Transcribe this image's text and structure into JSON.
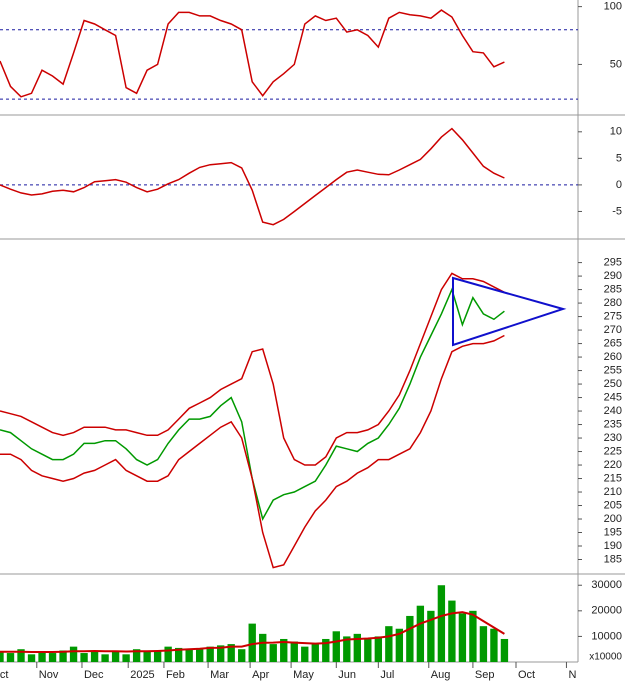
{
  "chart_data": [
    {
      "type": "line",
      "xlim": [
        0,
        55
      ],
      "ylim": [
        8,
        104
      ],
      "yticks": [
        50,
        100
      ],
      "reference_lines": [
        20,
        80
      ],
      "reference_color": "#1a1aa0",
      "x": [
        0,
        1,
        2,
        3,
        4,
        5,
        6,
        7,
        8,
        9,
        10,
        11,
        12,
        13,
        14,
        15,
        16,
        17,
        18,
        19,
        20,
        21,
        22,
        23,
        24,
        25,
        26,
        27,
        28,
        29,
        30,
        31,
        32,
        33,
        34,
        35,
        36,
        37,
        38,
        39,
        40,
        41,
        42,
        43,
        44,
        45,
        46,
        47,
        48
      ],
      "series": [
        {
          "color": "#cc0000",
          "values": [
            53,
            31,
            22,
            25,
            45,
            40,
            33,
            60,
            88,
            85,
            80,
            75,
            30,
            25,
            45,
            50,
            85,
            95,
            95,
            92,
            92,
            88,
            85,
            80,
            35,
            23,
            35,
            42,
            50,
            85,
            92,
            88,
            90,
            78,
            80,
            75,
            65,
            90,
            95,
            93,
            92,
            90,
            97,
            91,
            75,
            61,
            60,
            48,
            52
          ]
        }
      ]
    },
    {
      "type": "line",
      "xlim": [
        0,
        55
      ],
      "ylim": [
        -10,
        12.6
      ],
      "yticks": [
        -5,
        0,
        5,
        10
      ],
      "reference_lines": [
        0
      ],
      "reference_color": "#1a1aa0",
      "x": [
        0,
        1,
        2,
        3,
        4,
        5,
        6,
        7,
        8,
        9,
        10,
        11,
        12,
        13,
        14,
        15,
        16,
        17,
        18,
        19,
        20,
        21,
        22,
        23,
        24,
        25,
        26,
        27,
        28,
        29,
        30,
        31,
        32,
        33,
        34,
        35,
        36,
        37,
        38,
        39,
        40,
        41,
        42,
        43,
        44,
        45,
        46,
        47,
        48
      ],
      "series": [
        {
          "color": "#cc0000",
          "values": [
            0,
            -0.8,
            -1.5,
            -1.9,
            -1.7,
            -1.2,
            -1,
            -1.3,
            -0.5,
            0.6,
            0.8,
            1,
            0.5,
            -0.5,
            -1.3,
            -0.8,
            0.2,
            1,
            2.2,
            3.3,
            3.8,
            4,
            4.2,
            3.2,
            -1,
            -7,
            -7.5,
            -6.5,
            -5,
            -3.5,
            -2,
            -0.5,
            1,
            2.4,
            2.8,
            2.4,
            2,
            1.9,
            2.8,
            3.8,
            4.8,
            6.8,
            9,
            10.6,
            8.5,
            6,
            3.5,
            2.2,
            1.3
          ]
        }
      ]
    },
    {
      "type": "line",
      "xlim": [
        0,
        55
      ],
      "ylim": [
        180,
        303
      ],
      "yticks": [
        185,
        190,
        195,
        200,
        205,
        210,
        215,
        220,
        225,
        230,
        235,
        240,
        245,
        250,
        255,
        260,
        265,
        270,
        275,
        280,
        285,
        290,
        295
      ],
      "x": [
        0,
        1,
        2,
        3,
        4,
        5,
        6,
        7,
        8,
        9,
        10,
        11,
        12,
        13,
        14,
        15,
        16,
        17,
        18,
        19,
        20,
        21,
        22,
        23,
        24,
        25,
        26,
        27,
        28,
        29,
        30,
        31,
        32,
        33,
        34,
        35,
        36,
        37,
        38,
        39,
        40,
        41,
        42,
        43,
        44,
        45,
        46,
        47,
        48
      ],
      "series": [
        {
          "color": "#009900",
          "values": [
            233,
            232,
            229,
            226,
            224,
            222,
            222,
            224,
            228,
            228,
            229,
            229,
            226,
            222,
            220,
            222,
            228,
            233,
            237,
            237,
            238,
            242,
            245,
            236,
            215,
            200,
            207,
            209,
            210,
            212,
            214,
            220,
            227,
            226,
            225,
            228,
            230,
            235,
            241,
            250,
            260,
            268,
            276,
            285,
            272,
            282,
            276,
            274,
            277
          ]
        },
        {
          "color": "#cc0000",
          "values": [
            240,
            239,
            238,
            236,
            234,
            232,
            231,
            232,
            234,
            234,
            234,
            233,
            233,
            232,
            231,
            231,
            233,
            237,
            241,
            243,
            245,
            248,
            250,
            252,
            262,
            263,
            250,
            230,
            222,
            220,
            220,
            223,
            230,
            232,
            232,
            233,
            235,
            240,
            246,
            255,
            265,
            275,
            285,
            291,
            289,
            289,
            288,
            286,
            284
          ]
        },
        {
          "color": "#cc0000",
          "values": [
            224,
            224,
            222,
            218,
            216,
            215,
            214,
            215,
            217,
            218,
            220,
            222,
            218,
            216,
            214,
            214,
            216,
            222,
            225,
            228,
            231,
            234,
            236,
            230,
            215,
            195,
            182,
            183,
            190,
            197,
            203,
            207,
            212,
            214,
            217,
            219,
            222,
            222,
            224,
            226,
            232,
            240,
            252,
            262,
            264,
            265,
            265,
            266,
            268
          ]
        }
      ]
    },
    {
      "type": "bar",
      "xlim": [
        0,
        55
      ],
      "ylim": [
        0,
        34000
      ],
      "yticks": [
        10000,
        20000,
        30000
      ],
      "unit_label": "x10000",
      "color": "#009900",
      "x": [
        0,
        1,
        2,
        3,
        4,
        5,
        6,
        7,
        8,
        9,
        10,
        11,
        12,
        13,
        14,
        15,
        16,
        17,
        18,
        19,
        20,
        21,
        22,
        23,
        24,
        25,
        26,
        27,
        28,
        29,
        30,
        31,
        32,
        33,
        34,
        35,
        36,
        37,
        38,
        39,
        40,
        41,
        42,
        43,
        44,
        45,
        46,
        47,
        48
      ],
      "values": [
        4000,
        3500,
        5000,
        3000,
        4000,
        3500,
        4500,
        6000,
        3500,
        4000,
        3000,
        4500,
        3000,
        5000,
        4000,
        4500,
        6000,
        5500,
        5000,
        5000,
        6000,
        6500,
        7000,
        5000,
        15000,
        11000,
        7000,
        9000,
        8000,
        6000,
        7000,
        9000,
        12000,
        10000,
        11000,
        9000,
        10000,
        14000,
        13000,
        18000,
        22000,
        20000,
        30000,
        24000,
        19000,
        20000,
        14000,
        13000,
        9000
      ],
      "moving_average": {
        "color": "#cc0000",
        "values": [
          4000,
          4000,
          4000,
          3900,
          3900,
          3900,
          4000,
          4200,
          4200,
          4300,
          4200,
          4200,
          4100,
          4200,
          4200,
          4300,
          4500,
          4800,
          5000,
          5200,
          5500,
          5600,
          6000,
          6000,
          7000,
          7500,
          7600,
          7800,
          7600,
          7400,
          7200,
          7400,
          8000,
          8800,
          9000,
          9200,
          9500,
          10000,
          11000,
          13000,
          15000,
          16500,
          18000,
          19000,
          19500,
          18500,
          16000,
          13500,
          11000
        ]
      },
      "xticks": [
        {
          "value": -0.2,
          "label": "ct"
        },
        {
          "value": 3.5,
          "label": "Nov"
        },
        {
          "value": 7.8,
          "label": "Dec"
        },
        {
          "value": 12.2,
          "label": "2025"
        },
        {
          "value": 15.6,
          "label": "Feb"
        },
        {
          "value": 19.8,
          "label": "Mar"
        },
        {
          "value": 23.8,
          "label": "Apr"
        },
        {
          "value": 27.7,
          "label": "May"
        },
        {
          "value": 32,
          "label": "Jun"
        },
        {
          "value": 36,
          "label": "Jul"
        },
        {
          "value": 40.8,
          "label": "Aug"
        },
        {
          "value": 45,
          "label": "Sep"
        },
        {
          "value": 49.1,
          "label": "Oct"
        },
        {
          "value": 53.9,
          "label": "N"
        }
      ]
    }
  ]
}
